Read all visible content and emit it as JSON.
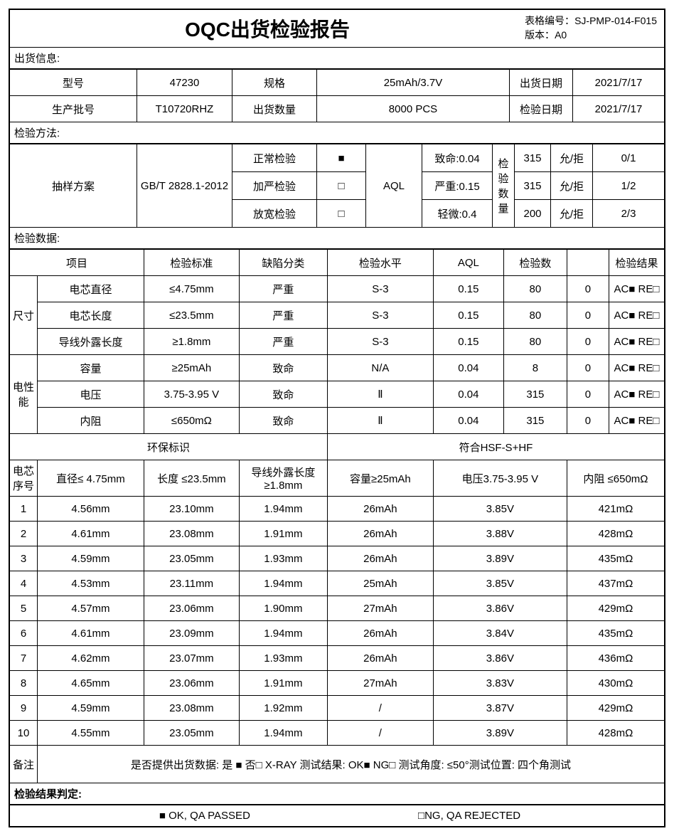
{
  "header": {
    "title": "OQC出货检验报告",
    "form_no_label": "表格编号：",
    "form_no": "SJ-PMP-014-F015",
    "version_label": "版本：",
    "version": "A0"
  },
  "ship_info": {
    "label": "出货信息:",
    "model_label": "型号",
    "model": "47230",
    "spec_label": "规格",
    "spec": "25mAh/3.7V",
    "ship_date_label": "出货日期",
    "ship_date": "2021/7/17",
    "lot_label": "生产批号",
    "lot": "T10720RHZ",
    "qty_label": "出货数量",
    "qty": "8000 PCS",
    "insp_date_label": "检验日期",
    "insp_date": "2021/7/17"
  },
  "method": {
    "label": "检验方法:",
    "plan_label": "抽样方案",
    "standard": "GB/T 2828.1-2012",
    "normal": "正常检验",
    "tight": "加严检验",
    "loose": "放宽检验",
    "filled": "■",
    "empty": "□",
    "aql_label": "AQL",
    "fatal": "致命:0.04",
    "major": "严重:0.15",
    "minor": "轻微:0.4",
    "qty_label": "检验数量",
    "n1": "315",
    "n2": "315",
    "n3": "200",
    "acrj": "允/拒",
    "r1": "0/1",
    "r2": "1/2",
    "r3": "2/3"
  },
  "data": {
    "label": "检验数据:",
    "col_item": "项目",
    "col_std": "检验标准",
    "col_defect": "缺陷分类",
    "col_level": "检验水平",
    "col_aql": "AQL",
    "col_n": "检验数",
    "col_blank": "",
    "col_result": "检验结果",
    "size_label": "尺寸",
    "elec_label": "电性能",
    "rows": [
      {
        "name": "电芯直径",
        "std": "≤4.75mm",
        "def": "严重",
        "lvl": "S-3",
        "aql": "0.15",
        "n": "80",
        "c": "0",
        "res": "AC■ RE□"
      },
      {
        "name": "电芯长度",
        "std": "≤23.5mm",
        "def": "严重",
        "lvl": "S-3",
        "aql": "0.15",
        "n": "80",
        "c": "0",
        "res": "AC■ RE□"
      },
      {
        "name": "导线外露长度",
        "std": "≥1.8mm",
        "def": "严重",
        "lvl": "S-3",
        "aql": "0.15",
        "n": "80",
        "c": "0",
        "res": "AC■ RE□"
      },
      {
        "name": "容量",
        "std": "≥25mAh",
        "def": "致命",
        "lvl": "N/A",
        "aql": "0.04",
        "n": "8",
        "c": "0",
        "res": "AC■ RE□"
      },
      {
        "name": "电压",
        "std": "3.75-3.95 V",
        "def": "致命",
        "lvl": "Ⅱ",
        "aql": "0.04",
        "n": "315",
        "c": "0",
        "res": "AC■ RE□"
      },
      {
        "name": "内阻",
        "std": "≤650mΩ",
        "def": "致命",
        "lvl": "Ⅱ",
        "aql": "0.04",
        "n": "315",
        "c": "0",
        "res": "AC■ RE□"
      }
    ],
    "env_label": "环保标识",
    "env_val": "符合HSF-S+HF"
  },
  "samples": {
    "seq_label": "电芯序号",
    "h1": "直径≤ 4.75mm",
    "h2": "长度 ≤23.5mm",
    "h3": "导线外露长度 ≥1.8mm",
    "h4": "容量≥25mAh",
    "h5": "电压3.75-3.95 V",
    "h6": "内阻 ≤650mΩ",
    "rows": [
      {
        "i": "1",
        "d": "4.56mm",
        "l": "23.10mm",
        "w": "1.94mm",
        "c": "26mAh",
        "v": "3.85V",
        "r": "421mΩ"
      },
      {
        "i": "2",
        "d": "4.61mm",
        "l": "23.08mm",
        "w": "1.91mm",
        "c": "26mAh",
        "v": "3.88V",
        "r": "428mΩ"
      },
      {
        "i": "3",
        "d": "4.59mm",
        "l": "23.05mm",
        "w": "1.93mm",
        "c": "26mAh",
        "v": "3.89V",
        "r": "435mΩ"
      },
      {
        "i": "4",
        "d": "4.53mm",
        "l": "23.11mm",
        "w": "1.94mm",
        "c": "25mAh",
        "v": "3.85V",
        "r": "437mΩ"
      },
      {
        "i": "5",
        "d": "4.57mm",
        "l": "23.06mm",
        "w": "1.90mm",
        "c": "27mAh",
        "v": "3.86V",
        "r": "429mΩ"
      },
      {
        "i": "6",
        "d": "4.61mm",
        "l": "23.09mm",
        "w": "1.94mm",
        "c": "26mAh",
        "v": "3.84V",
        "r": "435mΩ"
      },
      {
        "i": "7",
        "d": "4.62mm",
        "l": "23.07mm",
        "w": "1.93mm",
        "c": "26mAh",
        "v": "3.86V",
        "r": "436mΩ"
      },
      {
        "i": "8",
        "d": "4.65mm",
        "l": "23.06mm",
        "w": "1.91mm",
        "c": "27mAh",
        "v": "3.83V",
        "r": "430mΩ"
      },
      {
        "i": "9",
        "d": "4.59mm",
        "l": "23.08mm",
        "w": "1.92mm",
        "c": "/",
        "v": "3.87V",
        "r": "429mΩ"
      },
      {
        "i": "10",
        "d": "4.55mm",
        "l": "23.05mm",
        "w": "1.94mm",
        "c": "/",
        "v": "3.89V",
        "r": "428mΩ"
      }
    ]
  },
  "remark": {
    "label": "备注",
    "text": "是否提供出货数据:  是 ■   否□  X-RAY    测试结果: OK■  NG□   测试角度:  ≤50°测试位置:  四个角测试"
  },
  "verdict": {
    "label": "检验结果判定:",
    "ok": "■ OK, QA PASSED",
    "ng": "□NG, QA REJECTED"
  }
}
